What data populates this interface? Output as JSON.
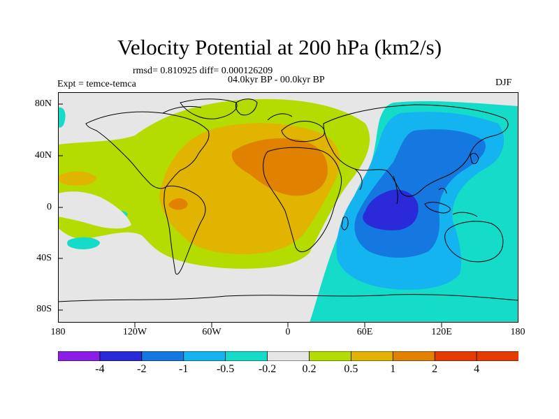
{
  "title": "Velocity Potential at 200 hPa (km2/s)",
  "stats": "rmsd= 0.810925 diff= 0.000126209",
  "period": "04.0kyr BP - 00.0kyr BP",
  "expt": "Expt = temce-temca",
  "season": "DJF",
  "lat_labels": [
    "80N",
    "40N",
    "0",
    "40S",
    "80S"
  ],
  "lon_labels": [
    "180",
    "120W",
    "60W",
    "0",
    "60E",
    "120E",
    "180"
  ],
  "colorbar": {
    "labels": [
      "-4",
      "-2",
      "-1",
      "-0.5",
      "-0.2",
      "0.2",
      "0.5",
      "1",
      "2",
      "4"
    ],
    "colors": [
      "#8a1ee6",
      "#2a2ad8",
      "#1478e0",
      "#14b4f0",
      "#14dcc8",
      "#e6e6e6",
      "#b4dc00",
      "#e0b400",
      "#e08200",
      "#e63c00"
    ]
  }
}
